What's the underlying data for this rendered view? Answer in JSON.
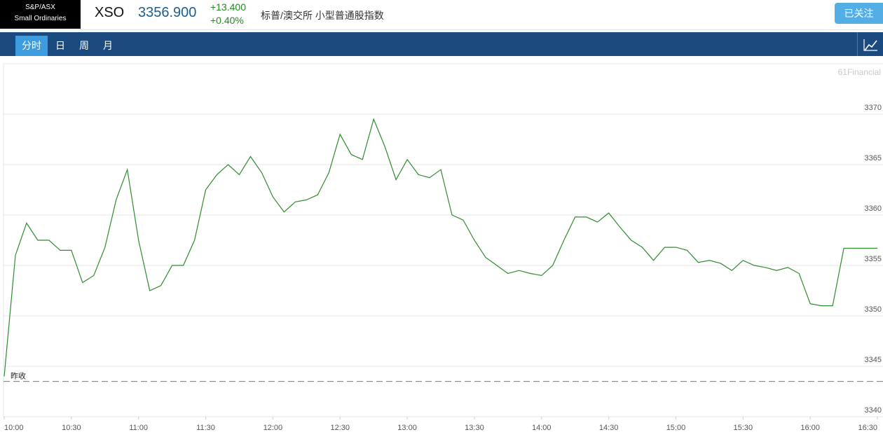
{
  "header": {
    "logo": [
      "S&P/ASX",
      "Small Ordinaries"
    ],
    "symbol": "XSO",
    "price": "3356.900",
    "change": "+13.400",
    "change_pct": "+0.40%",
    "name": "标普/澳交所 小型普通股指数",
    "button": "已关注"
  },
  "tabs": [
    "分时",
    "日",
    "周",
    "月"
  ],
  "chart_data": {
    "type": "line",
    "watermark": "61Financial",
    "line_color": "#2e8b2e",
    "x": [
      "10:00",
      "10:05",
      "10:10",
      "10:15",
      "10:20",
      "10:25",
      "10:30",
      "10:35",
      "10:40",
      "10:45",
      "10:50",
      "10:55",
      "11:00",
      "11:05",
      "11:10",
      "11:15",
      "11:20",
      "11:25",
      "11:30",
      "11:35",
      "11:40",
      "11:45",
      "11:50",
      "11:55",
      "12:00",
      "12:05",
      "12:10",
      "12:15",
      "12:20",
      "12:25",
      "12:30",
      "12:35",
      "12:40",
      "12:45",
      "12:50",
      "12:55",
      "13:00",
      "13:05",
      "13:10",
      "13:15",
      "13:20",
      "13:25",
      "13:30",
      "13:35",
      "13:40",
      "13:45",
      "13:50",
      "13:55",
      "14:00",
      "14:05",
      "14:10",
      "14:15",
      "14:20",
      "14:25",
      "14:30",
      "14:35",
      "14:40",
      "14:45",
      "14:50",
      "14:55",
      "15:00",
      "15:05",
      "15:10",
      "15:15",
      "15:20",
      "15:25",
      "15:30",
      "15:35",
      "15:40",
      "15:45",
      "15:50",
      "15:55",
      "16:00",
      "16:05",
      "16:10",
      "16:15",
      "16:20",
      "16:25",
      "16:30"
    ],
    "values": [
      3344,
      3356,
      3359.2,
      3357.5,
      3357.5,
      3356.5,
      3356.5,
      3353.3,
      3354,
      3356.8,
      3361.5,
      3364.5,
      3357.5,
      3352.5,
      3353,
      3355,
      3355,
      3357.5,
      3362.5,
      3364,
      3365,
      3364,
      3365.8,
      3364.2,
      3361.8,
      3360.3,
      3361.3,
      3361.5,
      3362,
      3364.2,
      3368,
      3366,
      3365.5,
      3369.5,
      3366.8,
      3363.5,
      3365.5,
      3364,
      3363.7,
      3364.5,
      3360,
      3359.5,
      3357.5,
      3355.8,
      3355,
      3354.2,
      3354.5,
      3354.2,
      3354,
      3355,
      3357.5,
      3359.8,
      3359.8,
      3359.3,
      3360.2,
      3358.8,
      3357.5,
      3356.8,
      3355.5,
      3356.8,
      3356.8,
      3356.5,
      3355.3,
      3355.5,
      3355.2,
      3354.5,
      3355.5,
      3355,
      3354.8,
      3354.5,
      3354.8,
      3354.2,
      3351.2,
      3351,
      3351,
      3356.7,
      3356.7,
      3356.7,
      3356.7
    ],
    "xlim": [
      "10:00",
      "16:30"
    ],
    "xticks": [
      "10:00",
      "10:30",
      "11:00",
      "11:30",
      "12:00",
      "12:30",
      "13:00",
      "13:30",
      "14:00",
      "14:30",
      "15:00",
      "15:30",
      "16:00",
      "16:30"
    ],
    "ylim": [
      3340,
      3375
    ],
    "yticks": [
      3340,
      3345,
      3350,
      3355,
      3360,
      3365,
      3370
    ],
    "grid": true,
    "prev_close": 3343.5,
    "prev_close_label": "昨收"
  }
}
